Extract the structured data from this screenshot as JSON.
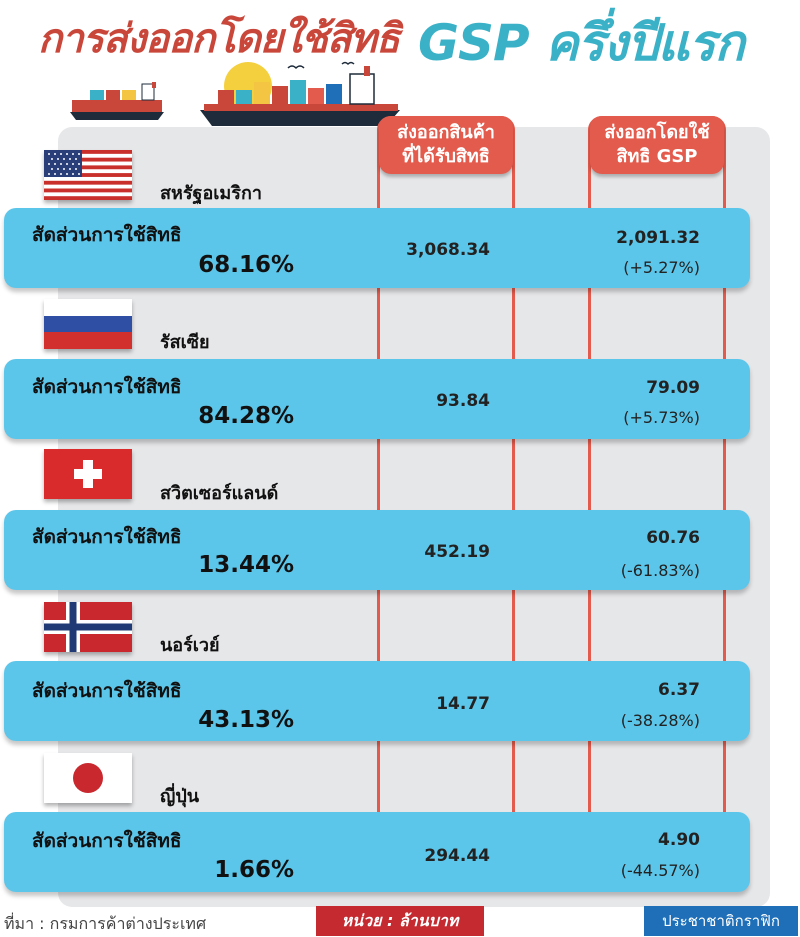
{
  "title": {
    "part1": "การส่งออกโดยใช้สิทธิ",
    "part2": "GSP ครึ่งปีแรก"
  },
  "colors": {
    "accent_red": "#e35b4c",
    "bar_blue": "#5cc6ea",
    "title_teal": "#3bb1c7",
    "title_red": "#c9473a"
  },
  "chart_data": {
    "type": "table",
    "columns": [
      {
        "line1": "ส่งออกสินค้า",
        "line2": "ที่ได้รับสิทธิ"
      },
      {
        "line1": "ส่งออกโดยใช้",
        "line2": "สิทธิ GSP"
      }
    ],
    "rows": [
      {
        "country": "สหรัฐอเมริกา",
        "flag": "us-flag-icon",
        "label": "สัดส่วนการใช้สิทธิ",
        "utilization": "68.16%",
        "eligible_exports": "3,068.34",
        "gsp_exports": "2,091.32",
        "change": "(+5.27%)"
      },
      {
        "country": "รัสเซีย",
        "flag": "russia-flag-icon",
        "label": "สัดส่วนการใช้สิทธิ",
        "utilization": "84.28%",
        "eligible_exports": "93.84",
        "gsp_exports": "79.09",
        "change": "(+5.73%)"
      },
      {
        "country": "สวิตเซอร์แลนด์",
        "flag": "switzerland-flag-icon",
        "label": "สัดส่วนการใช้สิทธิ",
        "utilization": "13.44%",
        "eligible_exports": "452.19",
        "gsp_exports": "60.76",
        "change": "(-61.83%)"
      },
      {
        "country": "นอร์เวย์",
        "flag": "norway-flag-icon",
        "label": "สัดส่วนการใช้สิทธิ",
        "utilization": "43.13%",
        "eligible_exports": "14.77",
        "gsp_exports": "6.37",
        "change": "(-38.28%)"
      },
      {
        "country": "ญี่ปุ่น",
        "flag": "japan-flag-icon",
        "label": "สัดส่วนการใช้สิทธิ",
        "utilization": "1.66%",
        "eligible_exports": "294.44",
        "gsp_exports": "4.90",
        "change": "(-44.57%)"
      }
    ]
  },
  "footer": {
    "source": "ที่มา : กรมการค้าต่างประเทศ",
    "unit": "หน่วย : ล้านบาท",
    "credit": "ประชาชาติกราฟิก"
  },
  "illustration": {
    "ships": "cargo-ship-icon"
  }
}
